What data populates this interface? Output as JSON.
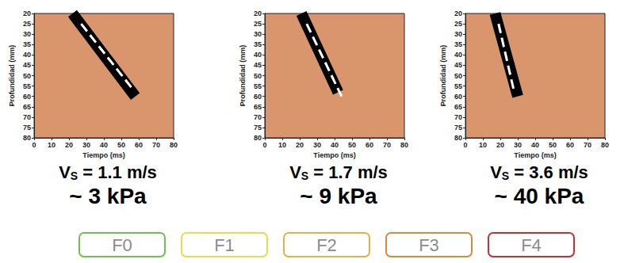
{
  "chart_data": [
    {
      "type": "line",
      "x_label": "Tiempo (ms)",
      "y_label": "Profundidad (mm)",
      "xlim": [
        0,
        80
      ],
      "xticks": [
        0,
        10,
        20,
        30,
        40,
        50,
        60,
        70,
        80
      ],
      "ylim": [
        80,
        20
      ],
      "yticks": [
        20,
        25,
        30,
        35,
        40,
        45,
        50,
        55,
        60,
        65,
        70,
        75,
        80
      ],
      "series": [
        {
          "color": "#000000",
          "line_style": "solid",
          "x": [
            22,
            58
          ],
          "values": [
            20,
            60
          ]
        },
        {
          "color": "#ffffff",
          "line_style": "dashed",
          "x": [
            27,
            57
          ],
          "values": [
            25,
            57
          ]
        }
      ],
      "velocity_label": {
        "main": "V",
        "sub": "S",
        "rest": " = 1.1 m/s"
      },
      "stiffness_label": "~ 3 kPa"
    },
    {
      "type": "line",
      "x_label": "Tiempo (ms)",
      "y_label": "Profundidad (mm)",
      "xlim": [
        0,
        80
      ],
      "xticks": [
        0,
        10,
        20,
        30,
        40,
        50,
        60,
        70,
        80
      ],
      "ylim": [
        80,
        20
      ],
      "yticks": [
        20,
        25,
        30,
        35,
        40,
        45,
        50,
        55,
        60,
        65,
        70,
        75,
        80
      ],
      "series": [
        {
          "color": "#000000",
          "line_style": "solid",
          "x": [
            21,
            42
          ],
          "values": [
            20,
            58
          ]
        },
        {
          "color": "#ffffff",
          "line_style": "dashed",
          "x": [
            24,
            44
          ],
          "values": [
            25,
            60
          ]
        }
      ],
      "velocity_label": {
        "main": "V",
        "sub": "S",
        "rest": " = 1.7 m/s"
      },
      "stiffness_label": "~ 9 kPa"
    },
    {
      "type": "line",
      "x_label": "Tiempo (ms)",
      "y_label": "Profundidad (mm)",
      "xlim": [
        0,
        80
      ],
      "xticks": [
        0,
        10,
        20,
        30,
        40,
        50,
        60,
        70,
        80
      ],
      "ylim": [
        80,
        20
      ],
      "yticks": [
        20,
        25,
        30,
        35,
        40,
        45,
        50,
        55,
        60,
        65,
        70,
        75,
        80
      ],
      "series": [
        {
          "color": "#000000",
          "line_style": "solid",
          "x": [
            17,
            30
          ],
          "values": [
            20,
            60
          ]
        },
        {
          "color": "#ffffff",
          "line_style": "dashed",
          "x": [
            19,
            28
          ],
          "values": [
            25,
            58
          ]
        }
      ],
      "velocity_label": {
        "main": "V",
        "sub": "S",
        "rest": " = 3.6 m/s"
      },
      "stiffness_label": "~ 40 kPa"
    }
  ],
  "stages": [
    {
      "label": "F0",
      "color": "#6cc24a"
    },
    {
      "label": "F1",
      "color": "#e6dc4a"
    },
    {
      "label": "F2",
      "color": "#e8b042"
    },
    {
      "label": "F3",
      "color": "#d9893c"
    },
    {
      "label": "F4",
      "color": "#cc2e2e"
    }
  ]
}
